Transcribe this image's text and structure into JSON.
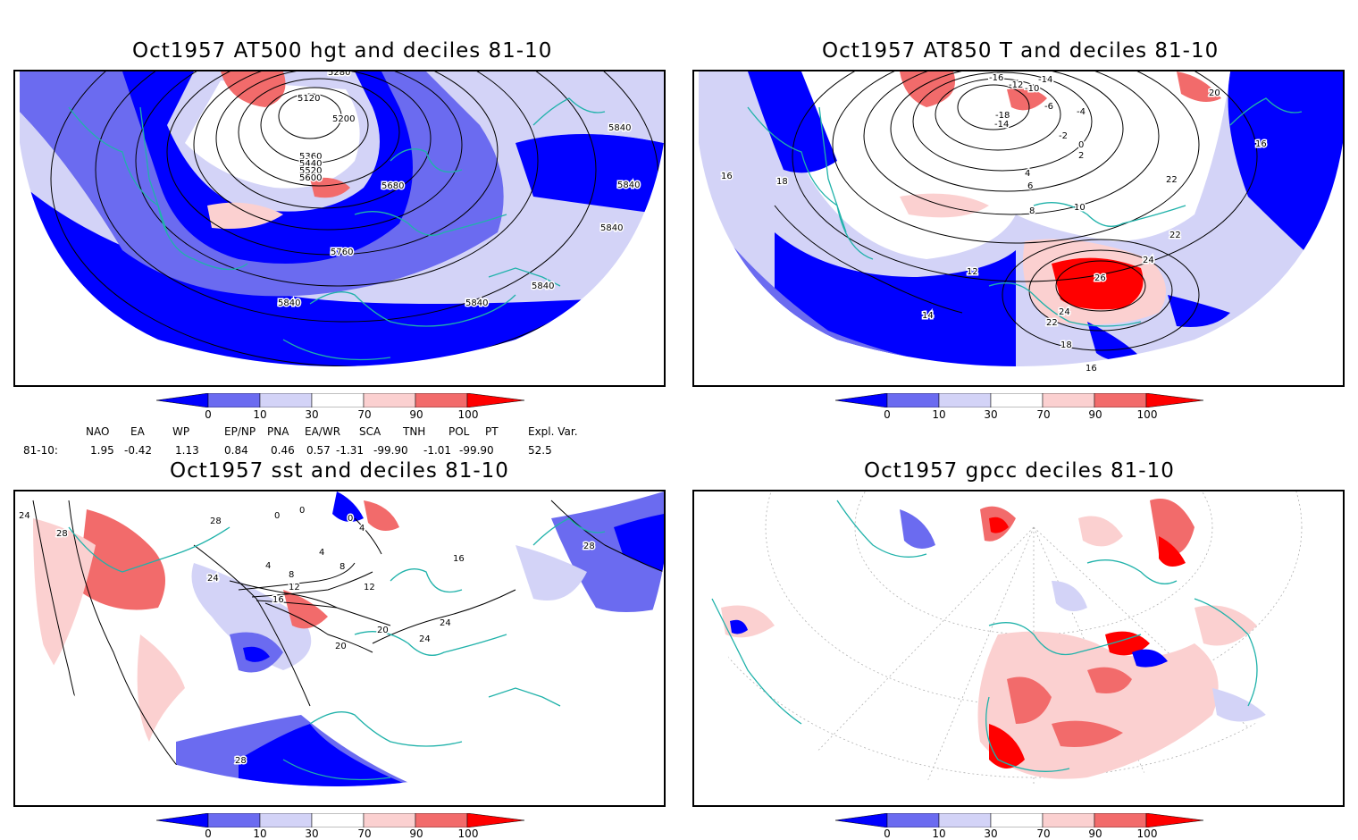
{
  "panels": [
    {
      "title": "Oct1957 AT500 hgt and deciles 81-10",
      "contour_labels": [
        "5120",
        "5200",
        "5280",
        "5360",
        "5440",
        "5520",
        "5600",
        "5680",
        "5760",
        "5840",
        "5840",
        "5840",
        "5840",
        "5840",
        "5840"
      ]
    },
    {
      "title": "Oct1957 AT850 T and deciles 81-10",
      "contour_labels": [
        "-16",
        "-14",
        "-12",
        "-10",
        "-6",
        "-4",
        "-2",
        "0",
        "2",
        "4",
        "6",
        "8",
        "10",
        "12",
        "14",
        "16",
        "16",
        "16",
        "18",
        "18",
        "20",
        "22",
        "22",
        "22",
        "24",
        "24",
        "26",
        "-18",
        "-14"
      ]
    },
    {
      "title": "Oct1957 sst and deciles 81-10",
      "contour_labels": [
        "24",
        "28",
        "0",
        "0",
        "0",
        "4",
        "4",
        "4",
        "8",
        "8",
        "12",
        "12",
        "16",
        "16",
        "20",
        "20",
        "24",
        "24",
        "24",
        "28",
        "28",
        "28"
      ]
    },
    {
      "title": "Oct1957 gpcc deciles 81-10",
      "contour_labels": []
    }
  ],
  "colorbar": {
    "labels": [
      "0",
      "10",
      "30",
      "70",
      "90",
      "100"
    ],
    "colors": [
      "#0000ff",
      "#6b6bf0",
      "#d3d3f7",
      "#ffffff",
      "#fbd0d0",
      "#f26b6b",
      "#ff0000"
    ]
  },
  "indices": {
    "headers": [
      "NAO",
      "EA",
      "WP",
      "EP/NP",
      "PNA",
      "EA/WR",
      "SCA",
      "TNH",
      "POL",
      "PT",
      "Expl. Var."
    ],
    "row_label": "81-10:",
    "values": [
      "1.95",
      "-0.42",
      "1.13",
      "0.84",
      "0.46",
      "0.57",
      "-1.31",
      "-99.90",
      "-1.01",
      "-99.90",
      "52.5"
    ]
  },
  "colors": {
    "coast": "#20b2aa",
    "strong_blue": "#0000ff",
    "mid_blue": "#6b6bf0",
    "light_blue": "#d3d3f7",
    "light_red": "#fbd0d0",
    "mid_red": "#f26b6b",
    "strong_red": "#ff0000"
  }
}
